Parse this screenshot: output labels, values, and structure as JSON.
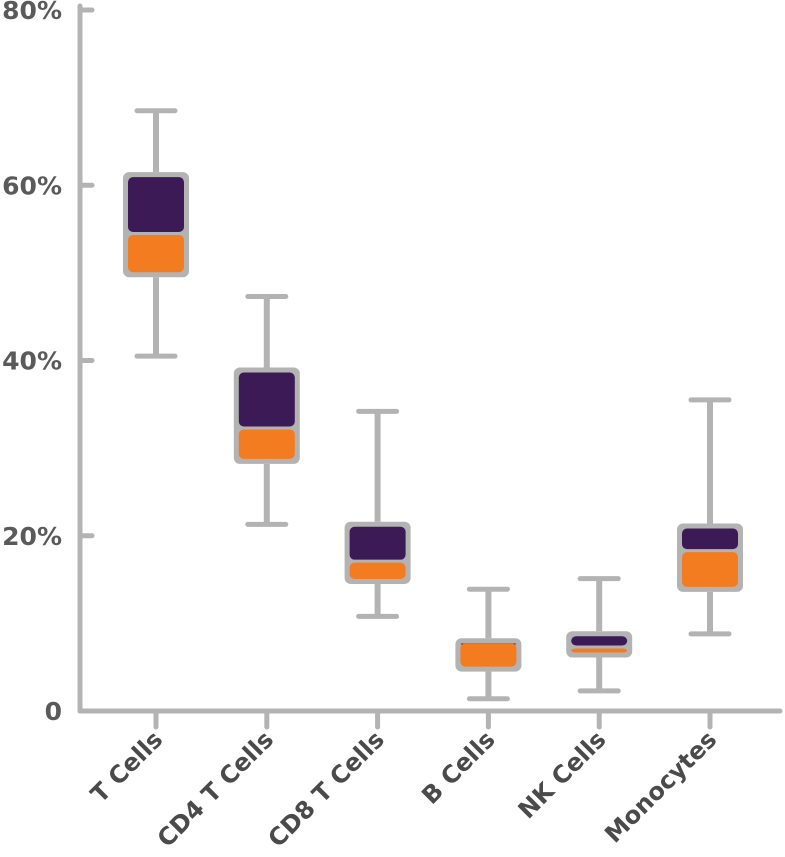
{
  "chart_data": {
    "type": "box",
    "categories": [
      "T Cells",
      "CD4 T Cells",
      "CD8 T Cells",
      "B Cells",
      "NK Cells",
      "Monocytes"
    ],
    "series": [
      {
        "stats": [
          {
            "min": 40.5,
            "q1": 49.5,
            "median": 54.5,
            "q3": 61.5,
            "max": 68.5
          },
          {
            "min": 21.3,
            "q1": 28.2,
            "median": 32.3,
            "q3": 39.2,
            "max": 47.3
          },
          {
            "min": 10.8,
            "q1": 14.5,
            "median": 17.1,
            "q3": 21.6,
            "max": 34.2
          },
          {
            "min": 1.4,
            "q1": 4.5,
            "median": 7.9,
            "q3": 8.3,
            "max": 13.9
          },
          {
            "min": 2.3,
            "q1": 6.1,
            "median": 7.3,
            "q3": 9.1,
            "max": 15.1
          },
          {
            "min": 8.8,
            "q1": 13.6,
            "median": 18.3,
            "q3": 21.4,
            "max": 35.5
          }
        ]
      }
    ],
    "yticks": [
      "0",
      "20%",
      "40%",
      "60%",
      "80%"
    ],
    "ylim": [
      0,
      80
    ],
    "colors": {
      "upper_box": "#3b1a56",
      "lower_box": "#f47c20",
      "frame": "#b3b3b3",
      "axis": "#b3b3b3",
      "text": "#4a4a4a"
    }
  }
}
